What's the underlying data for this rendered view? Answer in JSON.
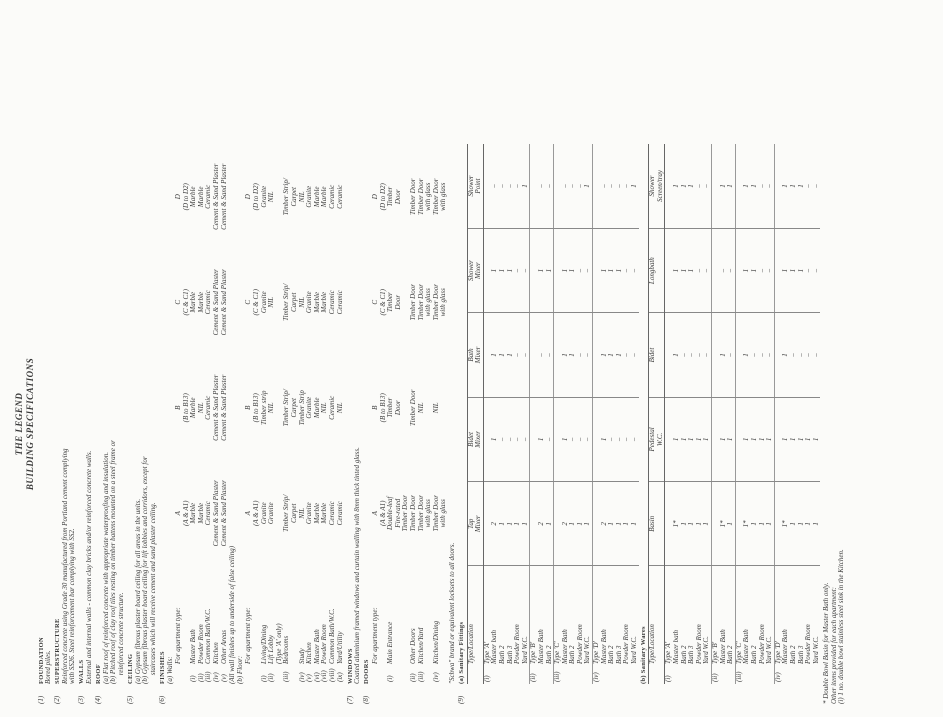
{
  "header": {
    "title": "THE LEGEND",
    "subtitle": "BUILDING SPECIFICATIONS"
  },
  "sections": [
    {
      "num": "(1)",
      "heading": "FOUNDATION",
      "text": [
        "Bored piles."
      ]
    },
    {
      "num": "(2)",
      "heading": "SUPERSTRUCTURE",
      "text": [
        "Reinforced concrete using Grade 30 manufactured from Portland cement complying",
        "with SS26. Steel reinforcement bar complying with SS2."
      ]
    },
    {
      "num": "(3)",
      "heading": "WALLS",
      "text": [
        "External and internal walls - common clay bricks and/or reinforced concrete walls."
      ]
    },
    {
      "num": "(4)",
      "heading": "ROOF",
      "text": [
        "(a) Flat roof of reinforced concrete with appropriate waterproofing and insulation.",
        "(b) Pitched roof of clay roof tiles resting on timber battens mounted on a steel frame or",
        "     reinforced concrete structure."
      ]
    },
    {
      "num": "(5)",
      "heading": "CEILING",
      "text": [
        "(a) Gypsum fibrous plaster board ceiling for all areas in the units.",
        "(b) Gypsum fibrous plaster board ceiling for lift lobbies and corridors, except for",
        "     staircases which will receive cement and sand plaster ceiling."
      ]
    },
    {
      "num": "(6)",
      "heading": "FINISHES",
      "parts": [
        {
          "label": "(a) Walls:",
          "table": {
            "header": [
              "For apartment type:",
              "A\n(A & A1)",
              "B\n(B to B13)",
              "C\n(C & C1)",
              "D\n(D to D2)"
            ],
            "rows": [
              [
                "(i)",
                "Master Bath",
                "Marble",
                "Marble",
                "Marble",
                "Marble"
              ],
              [
                "(ii)",
                "Powder Room",
                "Marble",
                "NIL",
                "Marble",
                "Marble"
              ],
              [
                "(iii)",
                "Common Bath/W.C.",
                "Ceramic",
                "Ceramic",
                "Ceramic",
                "Ceramic"
              ],
              [
                "(iv)",
                "Kitchen",
                "Cement & Sand Plaster",
                "Cement & Sand Plaster",
                "Cement & Sand Plaster",
                "Cement & Sand Plaster"
              ],
              [
                "(v)",
                "Other Areas",
                "Cement & Sand Plaster",
                "Cement & Sand Plaster",
                "Cement & Sand Plaster",
                "Cement & Sand Plaster"
              ]
            ]
          },
          "note": "(All wall finishes up to underside of false ceiling)"
        },
        {
          "label": "(b) Floor:",
          "table": {
            "header": [
              "For apartment type:",
              "A\n(A & A1)",
              "B\n(B to B13)",
              "C\n(C & C1)",
              "D\n(D to D2)"
            ],
            "rows": [
              [
                "(i)",
                "Living/Dining",
                "Granite",
                "Timber strip",
                "Granite",
                "Granite"
              ],
              [
                "(ii)",
                "Lift Lobby\n(Type 'A' only)",
                "Granite",
                "NIL",
                "NIL",
                "NIL"
              ],
              [
                "(iii)",
                "Bedrooms",
                "Timber Strip/\nCarpet",
                "Timber Strip/\nCarpet",
                "Timber Strip/\nCarpet",
                "Timber Strip/\nCarpet"
              ],
              [
                "(iv)",
                "Study",
                "NIL",
                "Timber Strip",
                "NIL",
                "NIL"
              ],
              [
                "(v)",
                "Kitchen",
                "Granite",
                "Granite",
                "Granite",
                "Granite"
              ],
              [
                "(vi)",
                "Master Bath",
                "Marble",
                "Marble",
                "Marble",
                "Marble"
              ],
              [
                "(vii)",
                "Powder Room",
                "Marble",
                "NIL",
                "Marble",
                "Marble"
              ],
              [
                "(viii)",
                "Common Bath/W.C.",
                "Ceramic",
                "Ceramic",
                "Ceramic",
                "Ceramic"
              ],
              [
                "(ix)",
                "Yard/Utility",
                "Ceramic",
                "NIL",
                "Ceramic",
                "Ceramic"
              ]
            ]
          }
        }
      ]
    },
    {
      "num": "(7)",
      "heading": "WINDOWS",
      "text": [
        "Coated aluminium framed windows and curtain walling with 8mm thick tinted glass."
      ]
    },
    {
      "num": "(8)",
      "heading": "DOORS",
      "parts": [
        {
          "table": {
            "header": [
              "For apartment type:",
              "A\n(A & A1)",
              "B\n(B to B13)",
              "C\n(C & C1)",
              "D\n(D to D2)"
            ],
            "rows": [
              [
                "(i)",
                "Main Entrance",
                "Double-leaf\nFire-rated\nTimber Door",
                "Timber\nDoor",
                "Timber\nDoor",
                "Timber\nDoor"
              ],
              [
                "(ii)",
                "Other Doors",
                "Timber Door",
                "Timber Door",
                "Timber Door",
                "Timber Door"
              ],
              [
                "(iii)",
                "Kitchen/Yard",
                "Timber Door\nwith glass",
                "NIL",
                "Timber Door\nwith glass",
                "Timber Door\nwith glass"
              ],
              [
                "(iv)",
                "Kitchen/Dining",
                "Timber Door\nwith glass",
                "NIL",
                "Timber Door\nwith glass",
                "Timber Door\nwith glass"
              ]
            ]
          },
          "note": "\"Schwa\" brand or equivalent locksets to all doors."
        }
      ]
    },
    {
      "num": "(9)",
      "heading": "",
      "parts": [
        {
          "label": "(a) Sanitary Fittings",
          "grid": {
            "header": [
              "Type/Location",
              "Tap\nMixer",
              "Bidet\nMixer",
              "Bath\nMixer",
              "Shower\nMixer",
              "Shower\nPoint"
            ],
            "groups": [
              {
                "num": "(i)",
                "type": "Type 'A'",
                "rows": [
                  {
                    "loc": "Master bath",
                    "vals": [
                      2,
                      1,
                      1,
                      1,
                      "–"
                    ]
                  },
                  {
                    "loc": "Bath 2",
                    "vals": [
                      1,
                      "–",
                      1,
                      1,
                      "–"
                    ]
                  },
                  {
                    "loc": "Bath 3",
                    "vals": [
                      1,
                      "–",
                      1,
                      1,
                      "–"
                    ]
                  },
                  {
                    "loc": "Powder Room",
                    "vals": [
                      1,
                      "–",
                      "–",
                      "–",
                      "–"
                    ]
                  },
                  {
                    "loc": "Yard W.C.",
                    "vals": [
                      1,
                      "–",
                      "–",
                      "–",
                      1
                    ]
                  }
                ]
              },
              {
                "num": "(ii)",
                "type": "Type 'B'",
                "rows": [
                  {
                    "loc": "Master Bath",
                    "vals": [
                      2,
                      1,
                      "–",
                      1,
                      "–"
                    ]
                  },
                  {
                    "loc": "Bath 2",
                    "vals": [
                      1,
                      "–",
                      "–",
                      1,
                      "–"
                    ]
                  }
                ]
              },
              {
                "num": "(iii)",
                "type": "Type 'C'",
                "rows": [
                  {
                    "loc": "Master Bath",
                    "vals": [
                      2,
                      1,
                      1,
                      1,
                      "–"
                    ]
                  },
                  {
                    "loc": "Bath 2",
                    "vals": [
                      1,
                      "–",
                      1,
                      1,
                      "–"
                    ]
                  },
                  {
                    "loc": "Powder Room",
                    "vals": [
                      1,
                      "–",
                      "–",
                      "–",
                      "–"
                    ]
                  },
                  {
                    "loc": "Yard W.C.",
                    "vals": [
                      1,
                      "–",
                      "–",
                      "–",
                      1
                    ]
                  }
                ]
              },
              {
                "num": "(iv)",
                "type": "Type 'D'",
                "rows": [
                  {
                    "loc": "Master Bath",
                    "vals": [
                      2,
                      1,
                      1,
                      1,
                      "–"
                    ]
                  },
                  {
                    "loc": "Bath 2",
                    "vals": [
                      1,
                      "–",
                      1,
                      1,
                      "–"
                    ]
                  },
                  {
                    "loc": "Bath 3",
                    "vals": [
                      1,
                      "–",
                      1,
                      1,
                      "–"
                    ]
                  },
                  {
                    "loc": "Powder Room",
                    "vals": [
                      1,
                      "–",
                      "–",
                      "–",
                      "–"
                    ]
                  },
                  {
                    "loc": "Yard W.C.",
                    "vals": [
                      1,
                      "–",
                      "–",
                      "–",
                      1
                    ]
                  }
                ]
              }
            ]
          }
        },
        {
          "label": "(b) Sanitary Wares",
          "grid": {
            "header": [
              "Type/Location",
              "Basin",
              "Pedestal\nW.C.",
              "Bidet",
              "Longbath",
              "Shower\nScreen/tray"
            ],
            "groups": [
              {
                "num": "(i)",
                "type": "Type 'A'",
                "rows": [
                  {
                    "loc": "Master bath",
                    "vals": [
                      "1*",
                      1,
                      1,
                      1,
                      1
                    ]
                  },
                  {
                    "loc": "Bath 2",
                    "vals": [
                      1,
                      1,
                      "–",
                      1,
                      1
                    ]
                  },
                  {
                    "loc": "Bath 3",
                    "vals": [
                      1,
                      1,
                      "–",
                      1,
                      1
                    ]
                  },
                  {
                    "loc": "Powder Room",
                    "vals": [
                      1,
                      1,
                      "–",
                      "–",
                      "–"
                    ]
                  },
                  {
                    "loc": "Yard W.C.",
                    "vals": [
                      1,
                      1,
                      "–",
                      "–",
                      "–"
                    ]
                  }
                ]
              },
              {
                "num": "(ii)",
                "type": "Type 'B'",
                "rows": [
                  {
                    "loc": "Master Bath",
                    "vals": [
                      "1*",
                      1,
                      1,
                      "–",
                      1
                    ]
                  },
                  {
                    "loc": "Bath 2",
                    "vals": [
                      1,
                      1,
                      "–",
                      "–",
                      1
                    ]
                  }
                ]
              },
              {
                "num": "(iii)",
                "type": "Type 'C'",
                "rows": [
                  {
                    "loc": "Master Bath",
                    "vals": [
                      "1*",
                      1,
                      1,
                      1,
                      1
                    ]
                  },
                  {
                    "loc": "Bath 2",
                    "vals": [
                      1,
                      1,
                      "–",
                      1,
                      1
                    ]
                  },
                  {
                    "loc": "Powder Room",
                    "vals": [
                      1,
                      1,
                      "–",
                      "–",
                      "–"
                    ]
                  },
                  {
                    "loc": "Yard W.C.",
                    "vals": [
                      1,
                      1,
                      "–",
                      "–",
                      "–"
                    ]
                  }
                ]
              },
              {
                "num": "(iv)",
                "type": "Type 'D'",
                "rows": [
                  {
                    "loc": "Master Bath",
                    "vals": [
                      "1*",
                      1,
                      1,
                      1,
                      1
                    ]
                  },
                  {
                    "loc": "Bath 2",
                    "vals": [
                      1,
                      1,
                      "–",
                      1,
                      1
                    ]
                  },
                  {
                    "loc": "Bath 3",
                    "vals": [
                      1,
                      1,
                      "–",
                      1,
                      1
                    ]
                  },
                  {
                    "loc": "Powder Room",
                    "vals": [
                      1,
                      1,
                      "–",
                      "–",
                      "–"
                    ]
                  },
                  {
                    "loc": "Yard W.C.",
                    "vals": [
                      1,
                      1,
                      "–",
                      "–",
                      "–"
                    ]
                  }
                ]
              }
            ]
          }
        }
      ]
    }
  ],
  "footnotes": [
    "* Double Bowl Basin for Master Bath only.",
    "Other items provided for each apartment:",
    "(i) 1 no. double bowl stainless steel sink in the Kitchen."
  ]
}
